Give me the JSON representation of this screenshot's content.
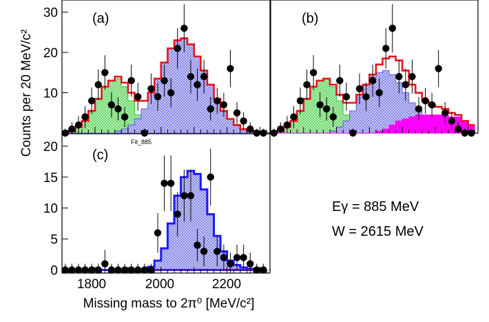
{
  "figure": {
    "ylabel": "Counts per 20 MeV/c²",
    "xlabel": "Missing mass to 2π⁰ [MeV/c²]",
    "x_ticks": [
      "1800",
      "2000",
      "2200"
    ],
    "energy_label": "Eγ = 885 MeV",
    "w_label": "W = 2615 MeV",
    "fit_tag": "Fit_885"
  },
  "colors": {
    "total_fit_red": "#e8141c",
    "fit_blue": "#1a1aff",
    "green_component": "#2ec42e",
    "blue_component": "#5a5ae0",
    "magenta_component": "#ff00ff",
    "data_points": "#000000"
  },
  "chart_data": [
    {
      "type": "histogram",
      "panel": "(a)",
      "xlim": [
        1700,
        2330
      ],
      "ylim": [
        0,
        33
      ],
      "y_ticks": [
        "10",
        "20",
        "30"
      ],
      "bin_width": 20,
      "data": {
        "x": [
          1710,
          1730,
          1750,
          1770,
          1790,
          1810,
          1830,
          1850,
          1870,
          1890,
          1910,
          1930,
          1950,
          1970,
          1990,
          2010,
          2030,
          2050,
          2070,
          2090,
          2110,
          2130,
          2150,
          2170,
          2190,
          2210,
          2230,
          2250,
          2270,
          2290,
          2310
        ],
        "y": [
          0,
          1,
          2,
          4,
          8,
          12,
          15,
          7,
          6,
          4,
          13,
          9,
          0,
          11,
          9,
          13,
          10,
          21,
          26,
          14,
          12,
          14,
          6,
          8,
          7,
          16,
          5,
          3,
          1,
          0,
          0
        ],
        "err": [
          1.1,
          1.7,
          2.2,
          2.7,
          3.3,
          3.8,
          4.3,
          3.1,
          2.9,
          2.5,
          4.0,
          3.5,
          1.1,
          3.8,
          3.5,
          4.0,
          3.6,
          5.0,
          6.0,
          4.2,
          4.0,
          4.2,
          2.9,
          3.2,
          3.0,
          4.6,
          2.7,
          2.2,
          1.7,
          1.1,
          1.1
        ]
      },
      "components": [
        {
          "name": "green",
          "values": [
            0,
            0.5,
            1.5,
            3,
            5.5,
            8.5,
            11.5,
            13,
            13.5,
            11.5,
            8,
            4.5,
            2,
            0.5,
            0,
            0,
            0,
            0,
            0,
            0,
            0,
            0,
            0,
            0,
            0,
            0,
            0,
            0,
            0,
            0,
            0
          ]
        },
        {
          "name": "blue",
          "values": [
            0,
            0,
            0,
            0,
            0,
            0,
            0,
            0,
            0.5,
            1,
            2,
            3.5,
            6,
            9.5,
            13.5,
            17.5,
            21,
            23,
            23.5,
            22,
            19,
            15.5,
            12,
            8.5,
            5.5,
            3.5,
            2,
            1,
            0.5,
            0,
            0
          ]
        },
        {
          "name": "total",
          "values": [
            0,
            0.5,
            1.5,
            3,
            5.5,
            8.5,
            11.5,
            13,
            14,
            12.5,
            10,
            8,
            8,
            10,
            13.5,
            17.5,
            21,
            23,
            23.5,
            22,
            19,
            15.5,
            12,
            8.5,
            5.5,
            3.5,
            2,
            1,
            0.5,
            0,
            0
          ]
        }
      ]
    },
    {
      "type": "histogram",
      "panel": "(b)",
      "xlim": [
        1700,
        2330
      ],
      "ylim": [
        0,
        33
      ],
      "y_ticks": [],
      "bin_width": 20,
      "data": {
        "x": [
          1710,
          1730,
          1750,
          1770,
          1790,
          1810,
          1830,
          1850,
          1870,
          1890,
          1910,
          1930,
          1950,
          1970,
          1990,
          2010,
          2030,
          2050,
          2070,
          2090,
          2110,
          2130,
          2150,
          2170,
          2190,
          2210,
          2230,
          2250,
          2270,
          2290,
          2310
        ],
        "y": [
          0,
          1,
          2,
          4,
          8,
          12,
          15,
          7,
          6,
          4,
          13,
          9,
          0,
          11,
          9,
          13,
          10,
          21,
          26,
          14,
          12,
          14,
          6,
          8,
          7,
          16,
          5,
          3,
          1,
          0,
          0
        ],
        "err": [
          1.1,
          1.7,
          2.2,
          2.7,
          3.3,
          3.8,
          4.3,
          3.1,
          2.9,
          2.5,
          4.0,
          3.5,
          1.1,
          3.8,
          3.5,
          4.0,
          3.6,
          5.0,
          6.0,
          4.2,
          4.0,
          4.2,
          2.9,
          3.2,
          3.0,
          4.6,
          2.7,
          2.2,
          1.7,
          1.1,
          1.1
        ]
      },
      "components": [
        {
          "name": "green",
          "values": [
            0,
            0.5,
            1.5,
            3,
            5.5,
            8.5,
            11.5,
            13,
            13.5,
            11.5,
            8,
            4.5,
            2,
            0.5,
            0,
            0,
            0,
            0,
            0,
            0,
            0,
            0,
            0,
            0,
            0,
            0,
            0,
            0,
            0,
            0,
            0
          ]
        },
        {
          "name": "blue",
          "values": [
            0,
            0,
            0,
            0,
            0,
            0,
            0,
            0,
            0,
            0.5,
            1.5,
            3,
            5.5,
            9,
            12,
            14,
            15,
            15.5,
            14.5,
            12.5,
            10,
            7.5,
            5.5,
            4,
            2.5,
            1.5,
            1,
            0.5,
            0,
            0,
            0
          ]
        },
        {
          "name": "magenta",
          "values": [
            0,
            0,
            0,
            0,
            0,
            0,
            0,
            0,
            0,
            0,
            0,
            0,
            0,
            0,
            0,
            0,
            0.5,
            1,
            2,
            3,
            3.5,
            4,
            4.5,
            4.5,
            4.5,
            4.5,
            4.5,
            4,
            4,
            3,
            2
          ]
        },
        {
          "name": "total",
          "values": [
            0,
            0.5,
            1.5,
            3,
            5.5,
            8.5,
            11.5,
            13,
            13.5,
            12,
            9.5,
            7.5,
            7.5,
            9.5,
            12,
            14.5,
            17,
            18.5,
            19,
            18,
            15.5,
            12,
            10,
            8,
            7,
            6.5,
            6,
            5,
            4.5,
            3,
            2
          ]
        }
      ]
    },
    {
      "type": "histogram",
      "panel": "(c)",
      "xlim": [
        1700,
        2330
      ],
      "ylim": [
        -0.5,
        22
      ],
      "y_ticks": [
        "0",
        "5",
        "10",
        "15",
        "20"
      ],
      "bin_width": 20,
      "data": {
        "x": [
          1710,
          1730,
          1750,
          1770,
          1790,
          1810,
          1830,
          1850,
          1870,
          1890,
          1910,
          1930,
          1950,
          1970,
          1990,
          2010,
          2030,
          2050,
          2070,
          2090,
          2110,
          2130,
          2150,
          2170,
          2190,
          2210,
          2230,
          2250,
          2270,
          2290,
          2310
        ],
        "y": [
          0,
          0,
          0,
          0,
          0,
          0,
          1,
          0,
          0,
          0,
          0,
          0,
          0,
          0,
          6,
          14,
          14,
          9,
          12,
          12,
          4,
          3,
          15,
          3,
          2,
          1,
          2,
          2,
          1,
          0,
          0
        ],
        "err": [
          1.0,
          1.0,
          1.0,
          1.0,
          1.0,
          1.0,
          2.2,
          1.0,
          1.0,
          1.0,
          1.0,
          1.0,
          1.0,
          1.0,
          3.2,
          4.5,
          4.5,
          3.6,
          4.2,
          4.2,
          2.6,
          2.4,
          4.6,
          2.4,
          2.1,
          1.8,
          2.1,
          2.1,
          1.8,
          1.0,
          1.0
        ]
      },
      "components": [
        {
          "name": "blue",
          "values": [
            0,
            0,
            0,
            0,
            0,
            0,
            0,
            0,
            0,
            0,
            0,
            0,
            0,
            0.5,
            1.5,
            3.5,
            7.5,
            12,
            15,
            16,
            15.5,
            13,
            9,
            5.5,
            3,
            1.5,
            0.8,
            0.4,
            0.2,
            0,
            0
          ]
        }
      ]
    }
  ]
}
